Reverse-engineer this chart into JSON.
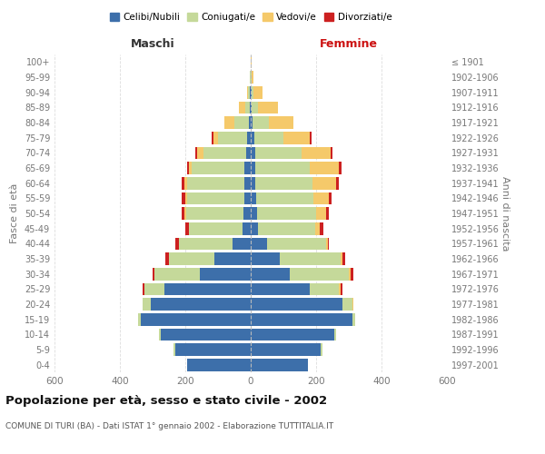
{
  "age_groups": [
    "0-4",
    "5-9",
    "10-14",
    "15-19",
    "20-24",
    "25-29",
    "30-34",
    "35-39",
    "40-44",
    "45-49",
    "50-54",
    "55-59",
    "60-64",
    "65-69",
    "70-74",
    "75-79",
    "80-84",
    "85-89",
    "90-94",
    "95-99",
    "100+"
  ],
  "birth_years": [
    "1997-2001",
    "1992-1996",
    "1987-1991",
    "1982-1986",
    "1977-1981",
    "1972-1976",
    "1967-1971",
    "1962-1966",
    "1957-1961",
    "1952-1956",
    "1947-1951",
    "1942-1946",
    "1937-1941",
    "1932-1936",
    "1927-1931",
    "1922-1926",
    "1917-1921",
    "1912-1916",
    "1907-1911",
    "1902-1906",
    "≤ 1901"
  ],
  "maschi_celibi": [
    195,
    230,
    275,
    335,
    305,
    265,
    155,
    110,
    55,
    25,
    22,
    20,
    20,
    20,
    15,
    10,
    5,
    2,
    2,
    0,
    0
  ],
  "maschi_coniugati": [
    0,
    5,
    5,
    10,
    25,
    60,
    140,
    140,
    165,
    165,
    175,
    175,
    175,
    160,
    130,
    90,
    45,
    15,
    5,
    2,
    0
  ],
  "maschi_vedovi": [
    0,
    0,
    0,
    0,
    0,
    0,
    0,
    0,
    0,
    0,
    5,
    5,
    8,
    10,
    20,
    15,
    30,
    20,
    5,
    0,
    0
  ],
  "maschi_divorziati": [
    0,
    0,
    0,
    0,
    0,
    5,
    5,
    10,
    10,
    10,
    10,
    10,
    8,
    5,
    5,
    5,
    0,
    0,
    0,
    0,
    0
  ],
  "femmine_celibi": [
    175,
    215,
    255,
    310,
    280,
    180,
    120,
    90,
    50,
    22,
    20,
    18,
    15,
    15,
    15,
    10,
    5,
    2,
    2,
    0,
    0
  ],
  "femmine_coniugati": [
    0,
    5,
    5,
    10,
    30,
    90,
    180,
    185,
    180,
    175,
    180,
    175,
    175,
    165,
    140,
    90,
    50,
    20,
    5,
    2,
    0
  ],
  "femmine_vedovi": [
    0,
    0,
    0,
    0,
    5,
    5,
    5,
    5,
    5,
    15,
    30,
    45,
    70,
    90,
    90,
    80,
    75,
    60,
    30,
    5,
    2
  ],
  "femmine_divorziati": [
    0,
    0,
    0,
    0,
    0,
    5,
    10,
    10,
    5,
    10,
    10,
    10,
    10,
    8,
    5,
    5,
    0,
    0,
    0,
    0,
    0
  ],
  "colors": {
    "celibi": "#3d6faa",
    "coniugati": "#c5d99a",
    "vedovi": "#f5c96a",
    "divorziati": "#cc2020"
  },
  "xlim": 600,
  "title": "Popolazione per età, sesso e stato civile - 2002",
  "subtitle": "COMUNE DI TURI (BA) - Dati ISTAT 1° gennaio 2002 - Elaborazione TUTTITALIA.IT",
  "xlabel_left": "Maschi",
  "xlabel_right": "Femmine",
  "ylabel_left": "Fasce di età",
  "ylabel_right": "Anni di nascita",
  "legend_labels": [
    "Celibi/Nubili",
    "Coniugati/e",
    "Vedovi/e",
    "Divorziati/e"
  ],
  "bg_color": "#ffffff",
  "grid_color": "#cccccc",
  "tick_color": "#777777"
}
